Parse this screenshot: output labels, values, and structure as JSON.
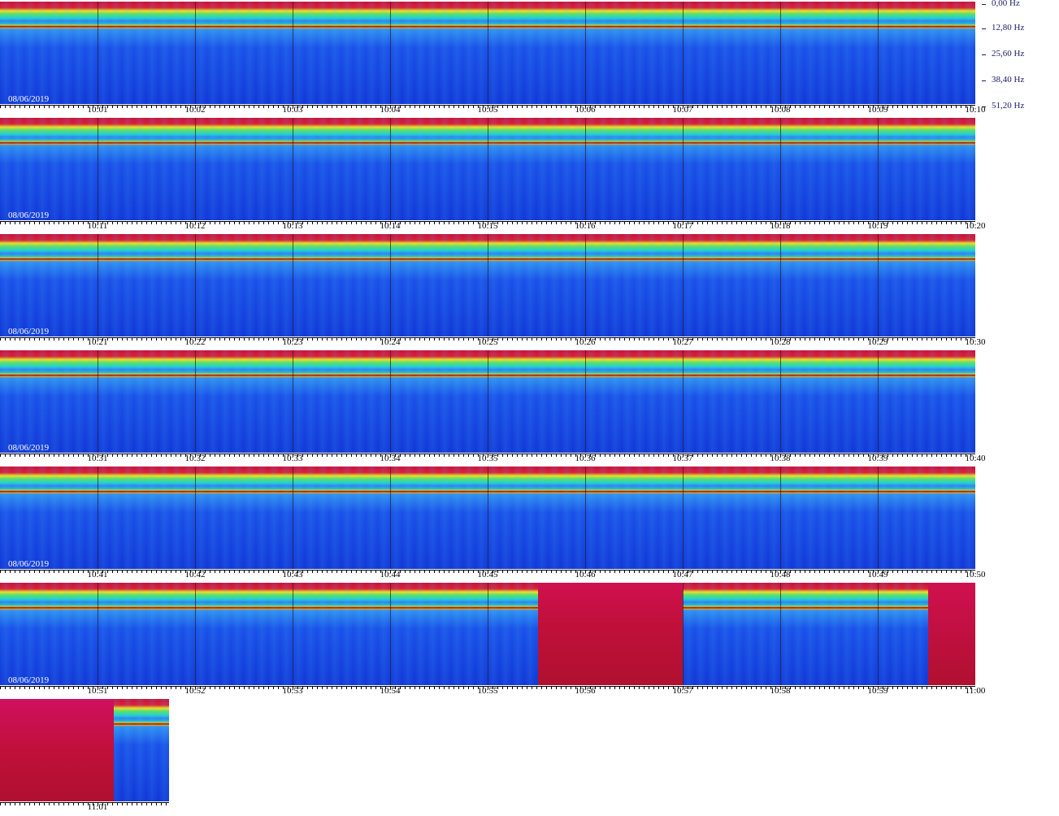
{
  "frequency_axis": {
    "labels": [
      "0,00 Hz",
      "12,80 Hz",
      "25,60 Hz",
      "38,40 Hz",
      "51,20 Hz"
    ]
  },
  "rows": [
    {
      "date": "08/06/2019",
      "times": [
        "10:01",
        "10:02",
        "10:03",
        "10:04",
        "10:05",
        "10:06",
        "10:07",
        "10:08",
        "10:09",
        "10:10"
      ]
    },
    {
      "date": "08/06/2019",
      "times": [
        "10:11",
        "10:12",
        "10:13",
        "10:14",
        "10:15",
        "10:16",
        "10:17",
        "10:18",
        "10:19",
        "10:20"
      ]
    },
    {
      "date": "08/06/2019",
      "times": [
        "10:21",
        "10:22",
        "10:23",
        "10:24",
        "10:25",
        "10:26",
        "10:27",
        "10:28",
        "10:29",
        "10:30"
      ]
    },
    {
      "date": "08/06/2019",
      "times": [
        "10:31",
        "10:32",
        "10:33",
        "10:34",
        "10:35",
        "10:36",
        "10:37",
        "10:38",
        "10:39",
        "10:40"
      ]
    },
    {
      "date": "08/06/2019",
      "times": [
        "10:41",
        "10:42",
        "10:43",
        "10:44",
        "10:45",
        "10:46",
        "10:47",
        "10:48",
        "10:49",
        "10:50"
      ]
    },
    {
      "date": "08/06/2019",
      "times": [
        "10:51",
        "10:52",
        "10:53",
        "10:54",
        "10:55",
        "10:56",
        "10:57",
        "10:58",
        "10:59",
        "11:00"
      ]
    },
    {
      "times": [
        "11:01"
      ]
    }
  ]
}
